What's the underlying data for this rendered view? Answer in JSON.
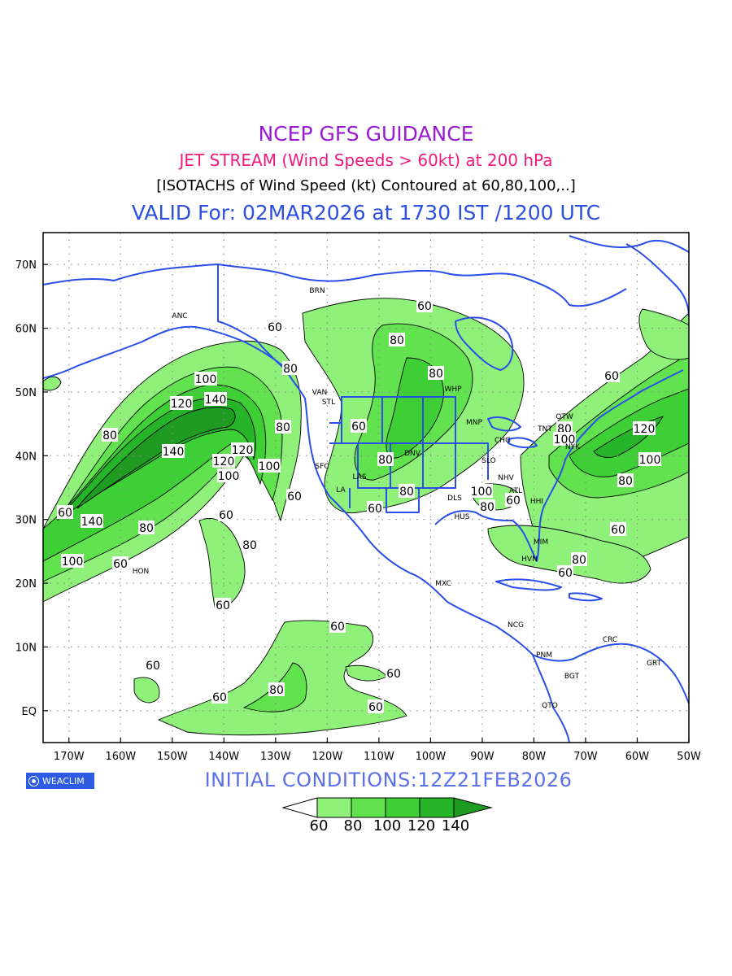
{
  "header": {
    "title": "NCEP GFS GUIDANCE",
    "subtitle": "JET STREAM (Wind Speeds > 60kt) at 200 hPa",
    "description": "[ISOTACHS of Wind Speed (kt) Contoured at 60,80,100,..]",
    "valid": "VALID For: 02MAR2026 at 1730 IST /1200 UTC"
  },
  "colors": {
    "title": "#9a1bd1",
    "subtitle": "#f0197e",
    "description": "#000000",
    "valid": "#2d4fe0",
    "coastline": "#2a4ee8",
    "logo_bg": "#2d5be3",
    "init": "#5b6fe6",
    "shades": [
      "#ffffff",
      "#8ff07a",
      "#62e24e",
      "#3ecf36",
      "#26b428",
      "#1f9b22"
    ]
  },
  "map": {
    "projection": "lat-lon",
    "lat_range": [
      -5,
      75
    ],
    "lon_range": [
      -175,
      -50
    ],
    "grid": "dotted",
    "lat_ticks": [
      "70N",
      "60N",
      "50N",
      "40N",
      "30N",
      "20N",
      "10N",
      "EQ"
    ],
    "lon_ticks": [
      "170W",
      "160W",
      "150W",
      "140W",
      "130W",
      "120W",
      "110W",
      "100W",
      "90W",
      "80W",
      "70W",
      "60W",
      "50W"
    ],
    "contour_labels": [
      "60",
      "80",
      "100",
      "120",
      "140"
    ],
    "stations": [
      "ANC",
      "BRN",
      "VAN",
      "STL",
      "SFC",
      "LA",
      "LAS",
      "DNV",
      "WHP",
      "MNP",
      "CHG",
      "SLO",
      "NHV",
      "DLS",
      "HUS",
      "ATL",
      "HHI",
      "MIM",
      "HVN",
      "MXC",
      "NCG",
      "PNM",
      "BGT",
      "QTO",
      "CRC",
      "GRT",
      "OTW",
      "TNT",
      "NYK",
      "HON"
    ]
  },
  "logo": {
    "text": "WEACLIM",
    "icon": "globe-icon"
  },
  "initial_conditions": "INITIAL  CONDITIONS:12Z21FEB2026",
  "legend": {
    "levels": [
      "60",
      "80",
      "100",
      "120",
      "140"
    ]
  }
}
